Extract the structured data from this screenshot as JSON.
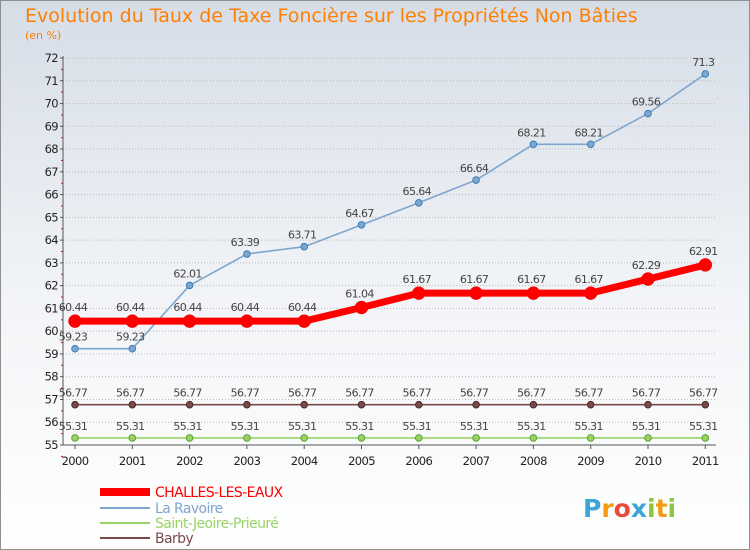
{
  "chart_data": {
    "type": "line",
    "title": "Evolution du Taux de Taxe Foncière sur les Propriétés Non Bâties",
    "subtitle": "(en %)",
    "categories": [
      "2000",
      "2001",
      "2002",
      "2003",
      "2004",
      "2005",
      "2006",
      "2007",
      "2008",
      "2009",
      "2010",
      "2011"
    ],
    "ylim": [
      55,
      72
    ],
    "yticks": [
      55,
      56,
      57,
      58,
      59,
      60,
      61,
      62,
      63,
      64,
      65,
      66,
      67,
      68,
      69,
      70,
      71,
      72
    ],
    "grid": "horizontal dotted",
    "legend_position": "bottom-left",
    "series": [
      {
        "name": "CHALLES-LES-EAUX",
        "color": "#ff0000",
        "values": [
          60.44,
          60.44,
          60.44,
          60.44,
          60.44,
          61.04,
          61.67,
          61.67,
          61.67,
          61.67,
          62.29,
          62.91
        ],
        "labels": [
          "60.44",
          "60.44",
          "60.44",
          "60.44",
          "60.44",
          "61.04",
          "61.67",
          "61.67",
          "61.67",
          "61.67",
          "62.29",
          "62.91"
        ]
      },
      {
        "name": "La Ravoire",
        "color": "#7fa6cf",
        "values": [
          59.23,
          59.23,
          62.01,
          63.39,
          63.71,
          64.67,
          65.64,
          66.64,
          68.21,
          68.21,
          69.56,
          71.3
        ],
        "labels": [
          "59.23",
          "59.23",
          "62.01",
          "63.39",
          "63.71",
          "64.67",
          "65.64",
          "66.64",
          "68.21",
          "68.21",
          "69.56",
          "71.3"
        ]
      },
      {
        "name": "Saint-Jeoire-Prieuré",
        "color": "#99d366",
        "values": [
          55.31,
          55.31,
          55.31,
          55.31,
          55.31,
          55.31,
          55.31,
          55.31,
          55.31,
          55.31,
          55.31,
          55.31
        ],
        "labels": [
          "55.31",
          "55.31",
          "55.31",
          "55.31",
          "55.31",
          "55.31",
          "55.31",
          "55.31",
          "55.31",
          "55.31",
          "55.31",
          "55.31"
        ]
      },
      {
        "name": "Barby",
        "color": "#7a4a4a",
        "values": [
          56.77,
          56.77,
          56.77,
          56.77,
          56.77,
          56.77,
          56.77,
          56.77,
          56.77,
          56.77,
          56.77,
          56.77
        ],
        "labels": [
          "56.77",
          "56.77",
          "56.77",
          "56.77",
          "56.77",
          "56.77",
          "56.77",
          "56.77",
          "56.77",
          "56.77",
          "56.77",
          "56.77"
        ]
      }
    ]
  },
  "branding": {
    "logo_text": "Proxiti"
  }
}
